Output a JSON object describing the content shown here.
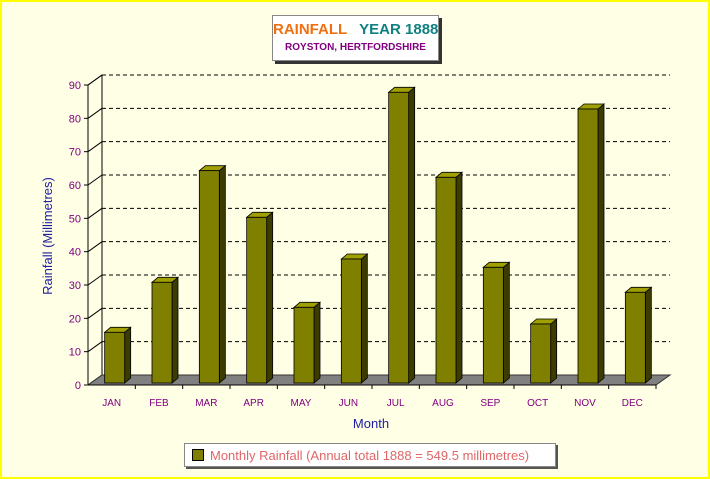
{
  "chart_data": {
    "type": "bar",
    "title": "RAINFALL",
    "title_year": "YEAR 1888",
    "subtitle": "ROYSTON, HERTFORDSHIRE",
    "xlabel": "Month",
    "ylabel": "Rainfall (Millimetres)",
    "categories": [
      "JAN",
      "FEB",
      "MAR",
      "APR",
      "MAY",
      "JUN",
      "JUL",
      "AUG",
      "SEP",
      "OCT",
      "NOV",
      "DEC"
    ],
    "series": [
      {
        "name": "Monthly Rainfall (Annual total 1888 = 549.5 millimetres)",
        "values": [
          17,
          32,
          65.5,
          51.5,
          24.5,
          39,
          89,
          63.5,
          36.5,
          19.5,
          84,
          29
        ]
      }
    ],
    "ylim": [
      0,
      90
    ],
    "yticks": [
      0,
      10,
      20,
      30,
      40,
      50,
      60,
      70,
      80,
      90
    ],
    "grid": true,
    "legend_position": "bottom",
    "colors": {
      "bar_front": "#808000",
      "bar_side": "#3c3c00",
      "bar_top": "#a0a000",
      "floor": "#808080",
      "axis_label": "#2020a0",
      "tick_label": "#800080"
    }
  }
}
